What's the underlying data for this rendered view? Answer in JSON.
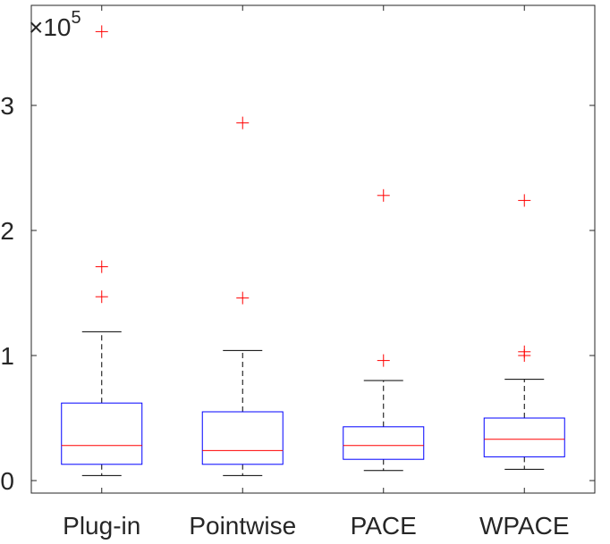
{
  "chart_data": {
    "type": "boxplot",
    "title": "",
    "xlabel": "",
    "ylabel": "",
    "exponent_base": "×10",
    "exponent_power": "5",
    "ylim": [
      -0.1,
      3.8
    ],
    "yticks": [
      0,
      1,
      2,
      3
    ],
    "ytick_labels": [
      "0",
      "1",
      "2",
      "3"
    ],
    "categories": [
      "Plug-in",
      "Pointwise",
      "PACE",
      "WPACE"
    ],
    "boxes": [
      {
        "name": "Plug-in",
        "whisker_low": 0.04,
        "q1": 0.13,
        "median": 0.28,
        "q3": 0.62,
        "whisker_high": 1.19,
        "outliers": [
          1.47,
          1.71,
          3.59
        ]
      },
      {
        "name": "Pointwise",
        "whisker_low": 0.04,
        "q1": 0.13,
        "median": 0.24,
        "q3": 0.55,
        "whisker_high": 1.04,
        "outliers": [
          1.46,
          2.86
        ]
      },
      {
        "name": "PACE",
        "whisker_low": 0.08,
        "q1": 0.17,
        "median": 0.28,
        "q3": 0.43,
        "whisker_high": 0.8,
        "outliers": [
          0.96,
          2.28
        ]
      },
      {
        "name": "WPACE",
        "whisker_low": 0.09,
        "q1": 0.19,
        "median": 0.33,
        "q3": 0.5,
        "whisker_high": 0.81,
        "outliers": [
          1.0,
          1.03,
          2.24
        ]
      }
    ],
    "grid": false,
    "colors": {
      "box": "#0000ff",
      "median": "#ff0000",
      "whisker": "#000000",
      "outlier": "#ff0000",
      "axis": "#262626"
    }
  }
}
